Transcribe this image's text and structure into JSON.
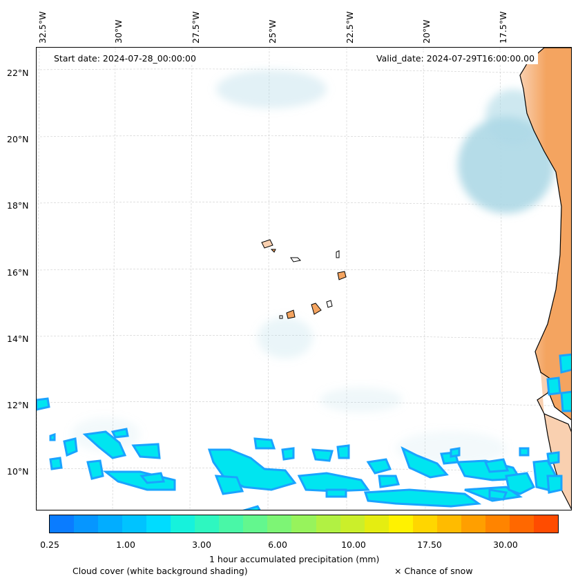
{
  "header": {
    "start_date": "Start date: 2024-07-28_00:00:00",
    "valid_date": "Valid_date: 2024-07-29T16:00:00.00"
  },
  "axes": {
    "lon_labels": [
      "32.5°W",
      "30°W",
      "27.5°W",
      "25°W",
      "22.5°W",
      "20°W",
      "17.5°W"
    ],
    "lat_labels": [
      "22°N",
      "20°N",
      "18°N",
      "16°N",
      "14°N",
      "12°N",
      "10°N"
    ]
  },
  "colorbar": {
    "ticks": [
      "0.25",
      "1.00",
      "3.00",
      "6.00",
      "10.00",
      "17.50",
      "30.00"
    ],
    "label": "1 hour accumulated precipitation (mm)",
    "colors": [
      "#0a7cff",
      "#0696ff",
      "#02adff",
      "#00c3ff",
      "#00dcff",
      "#16f2dc",
      "#2ef7c0",
      "#49f7a7",
      "#63f78e",
      "#7df575",
      "#97f35c",
      "#b1f143",
      "#cbef2a",
      "#e5ed11",
      "#fff200",
      "#ffd600",
      "#ffbb00",
      "#ff9f00",
      "#ff8400",
      "#ff6800",
      "#ff4c00"
    ]
  },
  "legend": {
    "cloud_cover": "Cloud cover (white background shading)",
    "snow": "× Chance of snow"
  },
  "colors": {
    "land": "#f4a460",
    "cloud_haze": "#add8e6",
    "precip_low": "#00e5f0",
    "precip_edge": "#1aa3ff"
  }
}
